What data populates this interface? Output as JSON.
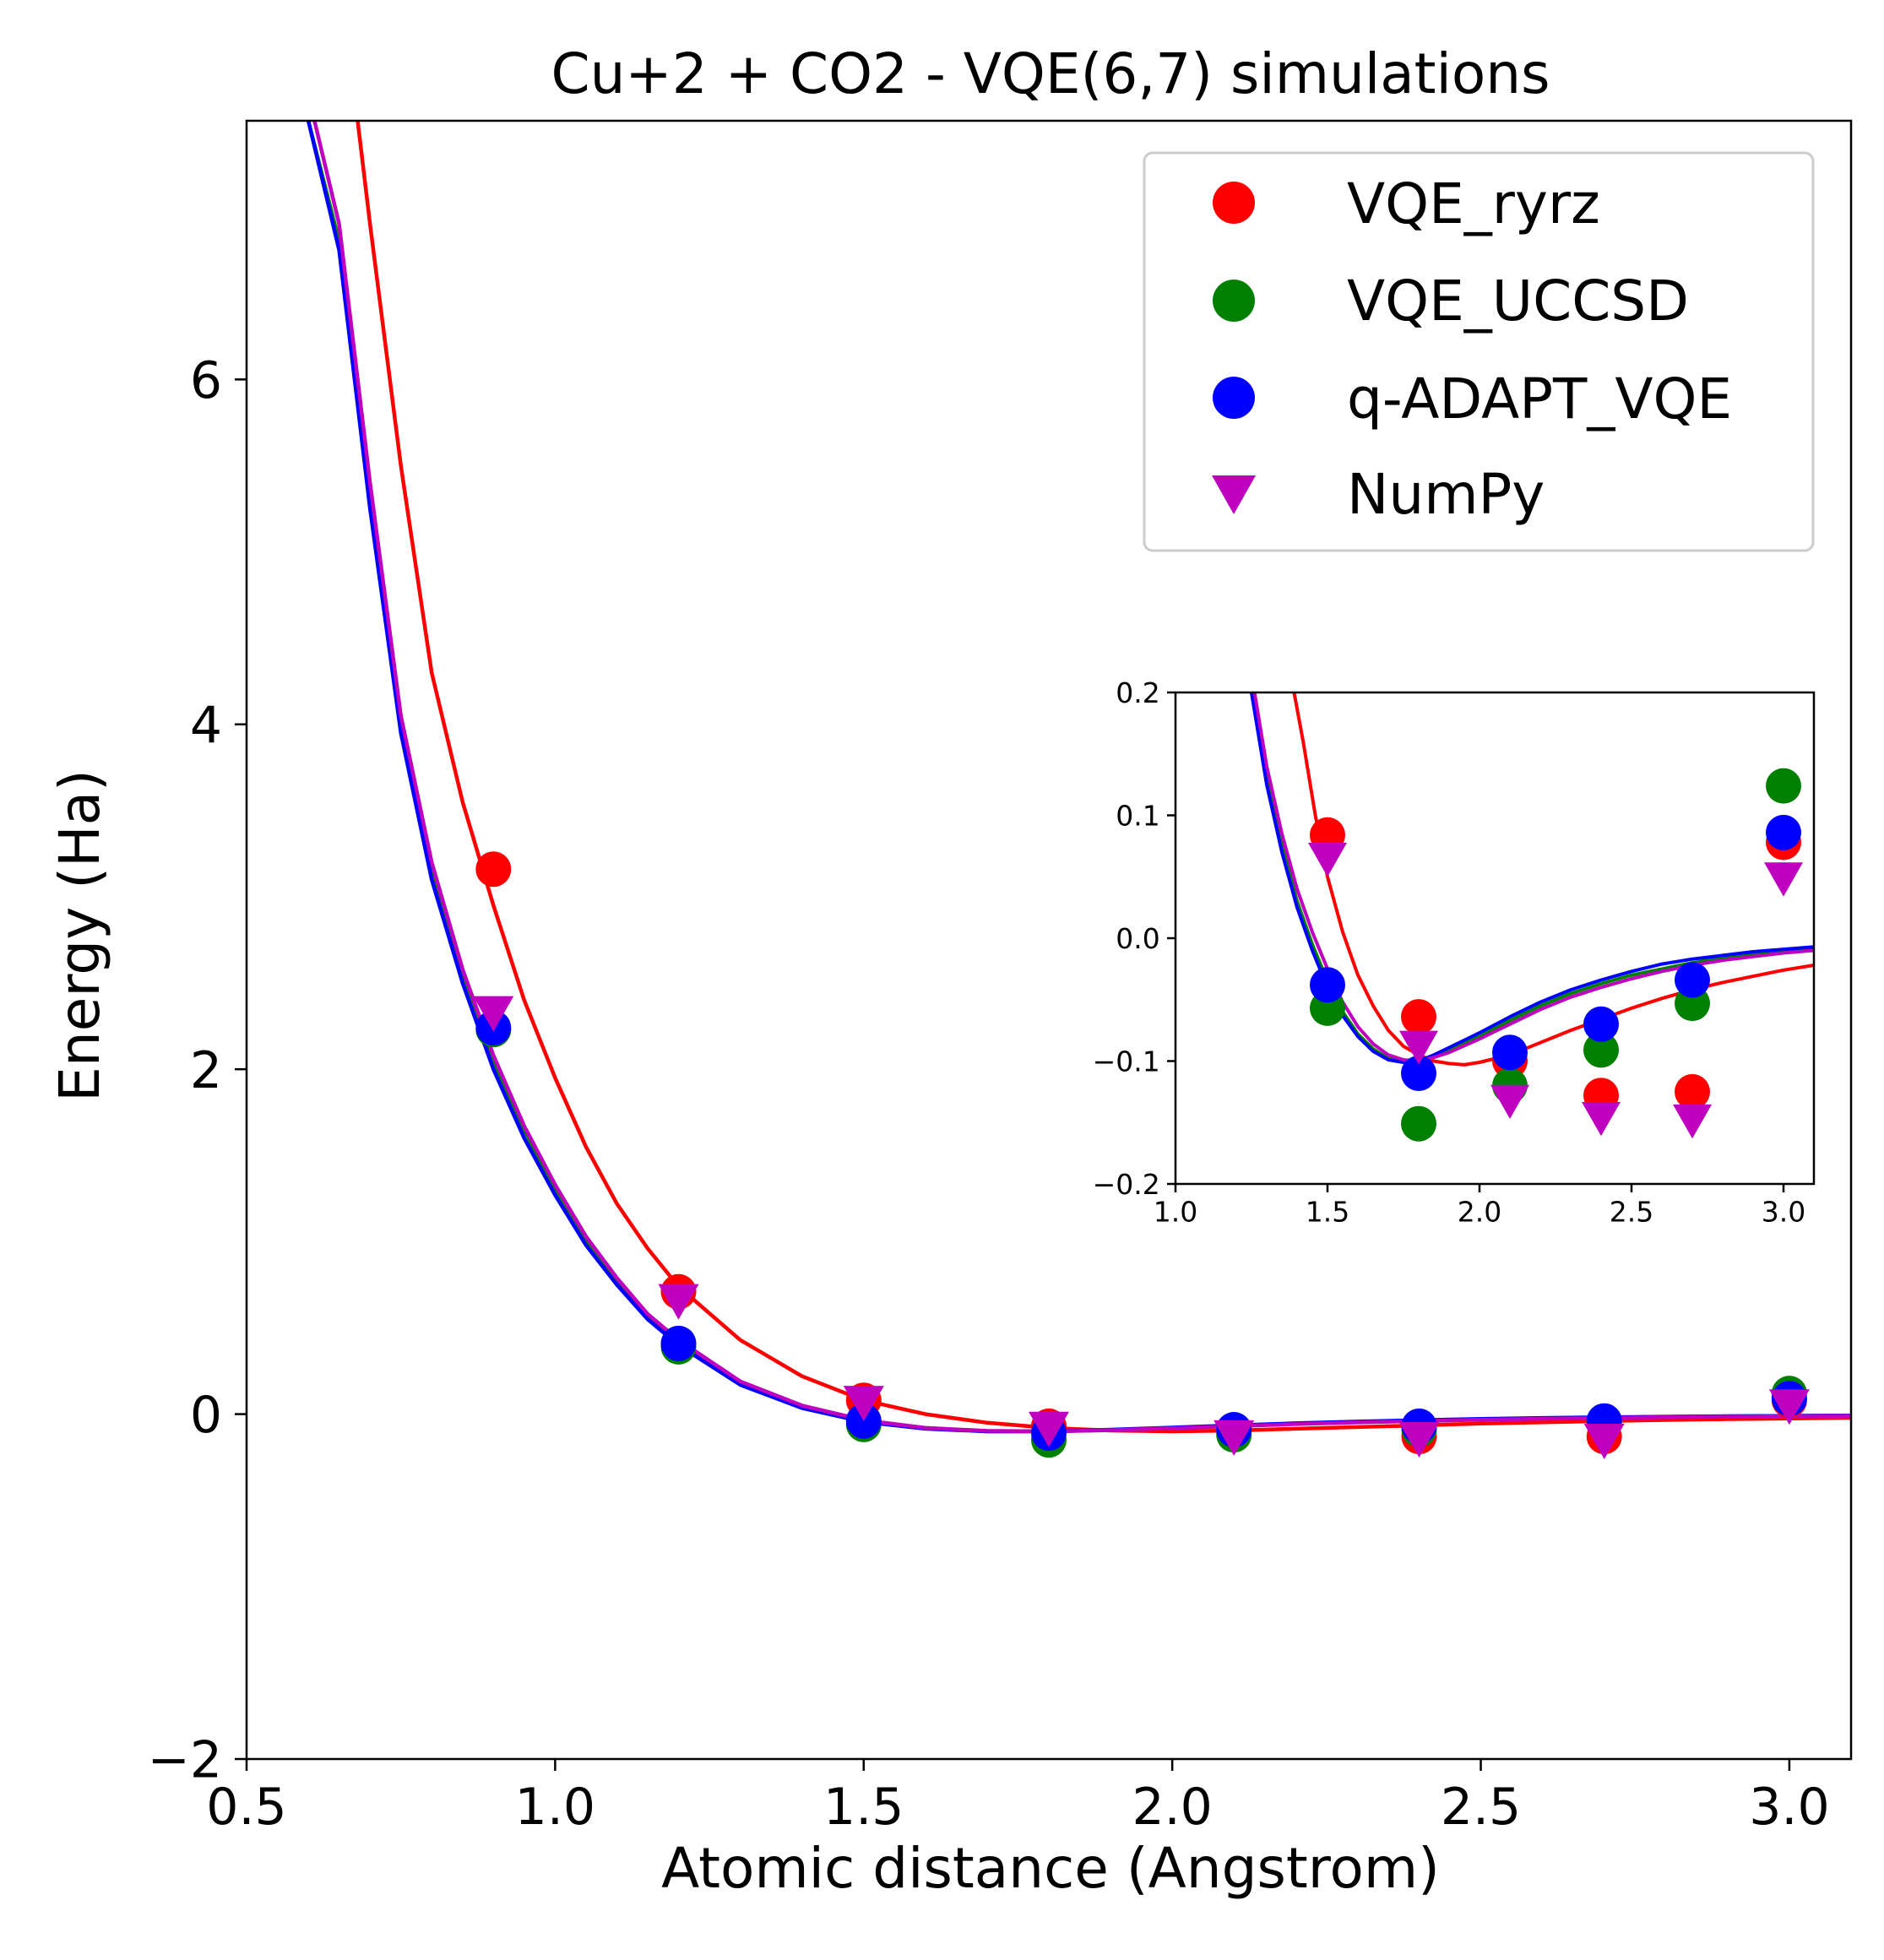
{
  "chart_data": [
    {
      "id": "main",
      "type": "scatter",
      "title": "Cu+2 + CO2 - VQE(6,7) simulations",
      "xlabel": "Atomic distance (Angstrom)",
      "ylabel": "Energy (Ha)",
      "xlim": [
        0.5,
        3.1
      ],
      "ylim": [
        -2.0,
        7.5
      ],
      "xticks": [
        0.5,
        1.0,
        1.5,
        2.0,
        2.5,
        3.0
      ],
      "xtick_labels": [
        "0.5",
        "1.0",
        "1.5",
        "2.0",
        "2.5",
        "3.0"
      ],
      "yticks": [
        -2,
        0,
        2,
        4,
        6
      ],
      "ytick_labels": [
        "−2",
        "0",
        "2",
        "4",
        "6"
      ],
      "grid": false,
      "legend_position": "top-right",
      "x": [
        0.9,
        1.2,
        1.5,
        1.8,
        2.1,
        2.4,
        2.7,
        3.0
      ],
      "series": [
        {
          "name": "VQE_ryrz",
          "marker": "circle",
          "color": "#ff0000",
          "values": [
            3.16,
            0.71,
            0.08,
            -0.07,
            -0.1,
            -0.13,
            -0.13,
            0.08
          ]
        },
        {
          "name": "VQE_UCCSD",
          "marker": "circle",
          "color": "#008000",
          "values": [
            2.23,
            0.39,
            -0.06,
            -0.15,
            -0.12,
            -0.09,
            -0.05,
            0.12
          ]
        },
        {
          "name": "q-ADAPT_VQE",
          "marker": "circle",
          "color": "#0000ff",
          "values": [
            2.24,
            0.41,
            -0.04,
            -0.11,
            -0.09,
            -0.07,
            -0.04,
            0.09
          ]
        },
        {
          "name": "NumPy",
          "marker": "triangle-down",
          "color": "#bf00bf",
          "values": [
            2.33,
            0.66,
            0.07,
            -0.08,
            -0.13,
            -0.14,
            -0.15,
            0.05
          ]
        }
      ],
      "curves": [
        {
          "color": "#ff0000",
          "x": [
            0.68,
            0.7,
            0.75,
            0.8,
            0.85,
            0.9,
            0.95,
            1.0,
            1.05,
            1.1,
            1.15,
            1.2,
            1.3,
            1.4,
            1.5,
            1.6,
            1.7,
            1.8,
            1.9,
            2.0,
            2.1,
            2.2,
            2.3,
            2.4,
            2.5,
            2.6,
            2.7,
            2.8,
            2.9,
            3.0,
            3.1
          ],
          "y": [
            7.5,
            6.9,
            5.5,
            4.3,
            3.55,
            2.95,
            2.4,
            1.95,
            1.55,
            1.22,
            0.96,
            0.74,
            0.43,
            0.22,
            0.08,
            0.0,
            -0.05,
            -0.08,
            -0.095,
            -0.1,
            -0.095,
            -0.085,
            -0.075,
            -0.065,
            -0.055,
            -0.047,
            -0.04,
            -0.034,
            -0.029,
            -0.025,
            -0.021
          ]
        },
        {
          "color": "#008000",
          "x": [
            0.6,
            0.65,
            0.7,
            0.75,
            0.8,
            0.85,
            0.9,
            0.95,
            1.0,
            1.05,
            1.1,
            1.15,
            1.2,
            1.3,
            1.4,
            1.5,
            1.6,
            1.7,
            1.8,
            1.9,
            2.0,
            2.1,
            2.2,
            2.3,
            2.4,
            2.5,
            2.6,
            2.7,
            2.8,
            2.9,
            3.0,
            3.1
          ],
          "y": [
            7.5,
            6.8,
            5.3,
            4.0,
            3.15,
            2.55,
            2.05,
            1.65,
            1.3,
            1.0,
            0.76,
            0.56,
            0.41,
            0.18,
            0.04,
            -0.04,
            -0.08,
            -0.1,
            -0.1,
            -0.092,
            -0.08,
            -0.067,
            -0.055,
            -0.045,
            -0.037,
            -0.03,
            -0.025,
            -0.02,
            -0.016,
            -0.013,
            -0.01,
            -0.008
          ]
        },
        {
          "color": "#0000ff",
          "x": [
            0.6,
            0.65,
            0.7,
            0.75,
            0.8,
            0.85,
            0.9,
            0.95,
            1.0,
            1.05,
            1.1,
            1.15,
            1.2,
            1.3,
            1.4,
            1.5,
            1.6,
            1.7,
            1.8,
            1.9,
            2.0,
            2.1,
            2.2,
            2.3,
            2.4,
            2.5,
            2.6,
            2.7,
            2.8,
            2.9,
            3.0,
            3.1
          ],
          "y": [
            7.5,
            6.75,
            5.25,
            3.95,
            3.1,
            2.5,
            2.0,
            1.6,
            1.27,
            0.98,
            0.75,
            0.55,
            0.4,
            0.17,
            0.035,
            -0.045,
            -0.085,
            -0.1,
            -0.1,
            -0.09,
            -0.078,
            -0.065,
            -0.053,
            -0.043,
            -0.035,
            -0.028,
            -0.022,
            -0.018,
            -0.015,
            -0.012,
            -0.01,
            -0.008
          ]
        },
        {
          "color": "#bf00bf",
          "x": [
            0.61,
            0.65,
            0.7,
            0.75,
            0.8,
            0.85,
            0.9,
            0.95,
            1.0,
            1.05,
            1.1,
            1.15,
            1.2,
            1.3,
            1.4,
            1.5,
            1.6,
            1.7,
            1.8,
            1.9,
            2.0,
            2.1,
            2.2,
            2.3,
            2.4,
            2.5,
            2.6,
            2.7,
            2.8,
            2.9,
            3.0,
            3.1
          ],
          "y": [
            7.5,
            6.9,
            5.4,
            4.05,
            3.2,
            2.58,
            2.08,
            1.67,
            1.33,
            1.03,
            0.79,
            0.58,
            0.43,
            0.19,
            0.05,
            -0.035,
            -0.08,
            -0.097,
            -0.1,
            -0.093,
            -0.082,
            -0.07,
            -0.058,
            -0.048,
            -0.04,
            -0.033,
            -0.027,
            -0.022,
            -0.018,
            -0.015,
            -0.012,
            -0.01
          ]
        }
      ]
    },
    {
      "id": "inset",
      "type": "scatter",
      "xlim": [
        1.0,
        3.1
      ],
      "ylim": [
        -0.2,
        0.2
      ],
      "xticks": [
        1.0,
        1.5,
        2.0,
        2.5,
        3.0
      ],
      "xtick_labels": [
        "1.0",
        "1.5",
        "2.0",
        "2.5",
        "3.0"
      ],
      "yticks": [
        -0.2,
        -0.1,
        0.0,
        0.1,
        0.2
      ],
      "ytick_labels": [
        "−0.2",
        "−0.1",
        "0.0",
        "0.1",
        "0.2"
      ],
      "grid": false,
      "x": [
        1.5,
        1.8,
        2.1,
        2.4,
        2.7,
        3.0
      ],
      "series": [
        {
          "name": "VQE_ryrz",
          "marker": "circle",
          "color": "#ff0000",
          "values": [
            0.084,
            -0.064,
            -0.1,
            -0.128,
            -0.125,
            0.078
          ]
        },
        {
          "name": "VQE_UCCSD",
          "marker": "circle",
          "color": "#008000",
          "values": [
            -0.057,
            -0.151,
            -0.12,
            -0.091,
            -0.053,
            0.124
          ]
        },
        {
          "name": "q-ADAPT_VQE",
          "marker": "circle",
          "color": "#0000ff",
          "values": [
            -0.038,
            -0.11,
            -0.093,
            -0.07,
            -0.034,
            0.086
          ]
        },
        {
          "name": "NumPy",
          "marker": "triangle-down",
          "color": "#bf00bf",
          "values": [
            0.065,
            -0.088,
            -0.132,
            -0.146,
            -0.148,
            0.049
          ]
        }
      ],
      "curves": [
        {
          "color": "#ff0000",
          "x": [
            1.39,
            1.42,
            1.46,
            1.5,
            1.55,
            1.6,
            1.65,
            1.7,
            1.75,
            1.8,
            1.85,
            1.9,
            1.95,
            2.0,
            2.1,
            2.2,
            2.3,
            2.4,
            2.5,
            2.6,
            2.7,
            2.8,
            2.9,
            3.0,
            3.1
          ],
          "y": [
            0.2,
            0.16,
            0.1,
            0.05,
            0.005,
            -0.03,
            -0.055,
            -0.075,
            -0.088,
            -0.095,
            -0.1,
            -0.102,
            -0.103,
            -0.101,
            -0.095,
            -0.085,
            -0.075,
            -0.066,
            -0.057,
            -0.049,
            -0.042,
            -0.036,
            -0.031,
            -0.026,
            -0.022
          ]
        },
        {
          "color": "#008000",
          "x": [
            1.25,
            1.3,
            1.35,
            1.4,
            1.45,
            1.5,
            1.55,
            1.6,
            1.65,
            1.7,
            1.75,
            1.8,
            1.85,
            1.9,
            2.0,
            2.1,
            2.2,
            2.3,
            2.4,
            2.5,
            2.6,
            2.7,
            2.8,
            2.9,
            3.0,
            3.1
          ],
          "y": [
            0.2,
            0.13,
            0.075,
            0.03,
            -0.005,
            -0.035,
            -0.06,
            -0.078,
            -0.09,
            -0.098,
            -0.1,
            -0.1,
            -0.096,
            -0.091,
            -0.08,
            -0.067,
            -0.055,
            -0.045,
            -0.037,
            -0.03,
            -0.025,
            -0.02,
            -0.016,
            -0.013,
            -0.01,
            -0.008
          ]
        },
        {
          "color": "#0000ff",
          "x": [
            1.25,
            1.3,
            1.35,
            1.4,
            1.45,
            1.5,
            1.55,
            1.6,
            1.65,
            1.7,
            1.75,
            1.8,
            1.85,
            1.9,
            2.0,
            2.1,
            2.2,
            2.3,
            2.4,
            2.5,
            2.6,
            2.7,
            2.8,
            2.9,
            3.0,
            3.1
          ],
          "y": [
            0.2,
            0.125,
            0.07,
            0.025,
            -0.01,
            -0.04,
            -0.063,
            -0.08,
            -0.092,
            -0.099,
            -0.101,
            -0.1,
            -0.095,
            -0.089,
            -0.077,
            -0.064,
            -0.052,
            -0.042,
            -0.034,
            -0.027,
            -0.021,
            -0.017,
            -0.014,
            -0.011,
            -0.009,
            -0.007
          ]
        },
        {
          "color": "#bf00bf",
          "x": [
            1.26,
            1.3,
            1.35,
            1.4,
            1.45,
            1.5,
            1.55,
            1.6,
            1.65,
            1.7,
            1.75,
            1.8,
            1.85,
            1.9,
            2.0,
            2.1,
            2.2,
            2.3,
            2.4,
            2.5,
            2.6,
            2.7,
            2.8,
            2.9,
            3.0,
            3.1
          ],
          "y": [
            0.2,
            0.14,
            0.085,
            0.04,
            0.005,
            -0.025,
            -0.052,
            -0.072,
            -0.086,
            -0.095,
            -0.099,
            -0.1,
            -0.097,
            -0.093,
            -0.082,
            -0.07,
            -0.058,
            -0.048,
            -0.04,
            -0.033,
            -0.027,
            -0.022,
            -0.018,
            -0.015,
            -0.012,
            -0.01
          ]
        }
      ]
    }
  ]
}
